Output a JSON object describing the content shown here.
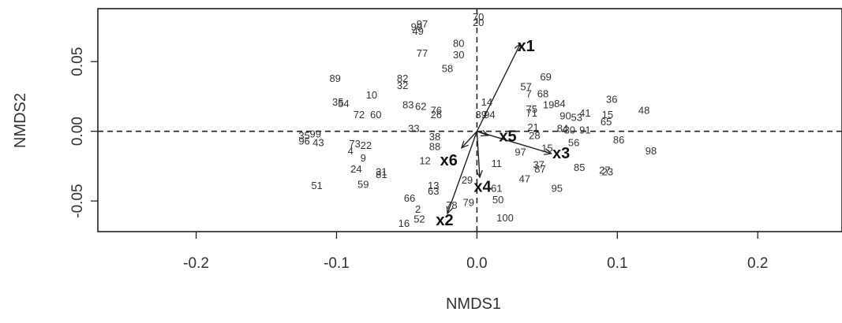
{
  "chart_data": {
    "type": "scatter",
    "xlabel": "NMDS1",
    "ylabel": "NMDS2",
    "xlim": [
      -0.27,
      0.26
    ],
    "ylim": [
      -0.072,
      0.088
    ],
    "xticks": [
      -0.2,
      -0.1,
      0.0,
      0.1,
      0.2
    ],
    "xtick_labels": [
      "-0.2",
      "-0.1",
      "0.0",
      "0.1",
      "0.2"
    ],
    "yticks": [
      -0.05,
      0.0,
      0.05
    ],
    "ytick_labels": [
      "-0.05",
      "0.00",
      "0.05"
    ],
    "reference_lines": {
      "x": 0,
      "y": 0,
      "style": "dashed"
    },
    "grid": false,
    "points": [
      {
        "label": "70",
        "x": 0.001,
        "y": 0.082
      },
      {
        "label": "20",
        "x": 0.001,
        "y": 0.078
      },
      {
        "label": "97",
        "x": -0.039,
        "y": 0.077
      },
      {
        "label": "90",
        "x": -0.043,
        "y": 0.075
      },
      {
        "label": "49",
        "x": -0.042,
        "y": 0.072
      },
      {
        "label": "80",
        "x": -0.013,
        "y": 0.063
      },
      {
        "label": "30",
        "x": -0.013,
        "y": 0.055
      },
      {
        "label": "77",
        "x": -0.039,
        "y": 0.056
      },
      {
        "label": "58",
        "x": -0.021,
        "y": 0.045
      },
      {
        "label": "89",
        "x": -0.101,
        "y": 0.038
      },
      {
        "label": "82",
        "x": -0.053,
        "y": 0.038
      },
      {
        "label": "32",
        "x": -0.053,
        "y": 0.033
      },
      {
        "label": "69",
        "x": 0.049,
        "y": 0.039
      },
      {
        "label": "57",
        "x": 0.035,
        "y": 0.032
      },
      {
        "label": "10",
        "x": -0.075,
        "y": 0.026
      },
      {
        "label": "68",
        "x": 0.047,
        "y": 0.027
      },
      {
        "label": "7",
        "x": 0.037,
        "y": 0.027
      },
      {
        "label": "36",
        "x": 0.096,
        "y": 0.023
      },
      {
        "label": "35",
        "x": -0.099,
        "y": 0.021
      },
      {
        "label": "54",
        "x": -0.095,
        "y": 0.02
      },
      {
        "label": "84",
        "x": 0.059,
        "y": 0.02
      },
      {
        "label": "19",
        "x": 0.051,
        "y": 0.019
      },
      {
        "label": "14",
        "x": 0.007,
        "y": 0.021
      },
      {
        "label": "83",
        "x": -0.049,
        "y": 0.019
      },
      {
        "label": "62",
        "x": -0.04,
        "y": 0.018
      },
      {
        "label": "48",
        "x": 0.119,
        "y": 0.015
      },
      {
        "label": "72",
        "x": -0.084,
        "y": 0.012
      },
      {
        "label": "60",
        "x": -0.072,
        "y": 0.012
      },
      {
        "label": "76",
        "x": -0.029,
        "y": 0.015
      },
      {
        "label": "26",
        "x": -0.029,
        "y": 0.012
      },
      {
        "label": "75",
        "x": 0.039,
        "y": 0.016
      },
      {
        "label": "71",
        "x": 0.039,
        "y": 0.013
      },
      {
        "label": "41",
        "x": 0.077,
        "y": 0.013
      },
      {
        "label": "15",
        "x": 0.093,
        "y": 0.012
      },
      {
        "label": "90",
        "x": 0.063,
        "y": 0.011
      },
      {
        "label": "53",
        "x": 0.071,
        "y": 0.01
      },
      {
        "label": "65",
        "x": 0.092,
        "y": 0.007
      },
      {
        "label": "39",
        "x": 0.003,
        "y": 0.012
      },
      {
        "label": "94",
        "x": 0.009,
        "y": 0.012
      },
      {
        "label": "33",
        "x": -0.045,
        "y": 0.002
      },
      {
        "label": "21",
        "x": 0.04,
        "y": 0.003
      },
      {
        "label": "84",
        "x": 0.061,
        "y": 0.002
      },
      {
        "label": "30",
        "x": 0.066,
        "y": 0.001
      },
      {
        "label": "91",
        "x": 0.077,
        "y": 0.001
      },
      {
        "label": "28",
        "x": 0.041,
        "y": -0.003
      },
      {
        "label": "56",
        "x": 0.069,
        "y": -0.008
      },
      {
        "label": "86",
        "x": 0.101,
        "y": -0.006
      },
      {
        "label": "35",
        "x": -0.123,
        "y": -0.003
      },
      {
        "label": "99",
        "x": -0.115,
        "y": -0.002
      },
      {
        "label": "96",
        "x": -0.123,
        "y": -0.007
      },
      {
        "label": "43",
        "x": -0.113,
        "y": -0.008
      },
      {
        "label": "38",
        "x": -0.03,
        "y": -0.004
      },
      {
        "label": "88",
        "x": -0.03,
        "y": -0.011
      },
      {
        "label": "73",
        "x": -0.087,
        "y": -0.009
      },
      {
        "label": "22",
        "x": -0.079,
        "y": -0.01
      },
      {
        "label": "4",
        "x": -0.09,
        "y": -0.014
      },
      {
        "label": "97",
        "x": 0.031,
        "y": -0.015
      },
      {
        "label": "15",
        "x": 0.05,
        "y": -0.012
      },
      {
        "label": "98",
        "x": 0.124,
        "y": -0.014
      },
      {
        "label": "9",
        "x": -0.081,
        "y": -0.019
      },
      {
        "label": "12",
        "x": -0.037,
        "y": -0.021
      },
      {
        "label": "11",
        "x": 0.014,
        "y": -0.023
      },
      {
        "label": "37",
        "x": 0.044,
        "y": -0.024
      },
      {
        "label": "87",
        "x": 0.045,
        "y": -0.027
      },
      {
        "label": "24",
        "x": -0.086,
        "y": -0.027
      },
      {
        "label": "31",
        "x": -0.068,
        "y": -0.029
      },
      {
        "label": "81",
        "x": -0.068,
        "y": -0.031
      },
      {
        "label": "85",
        "x": 0.073,
        "y": -0.026
      },
      {
        "label": "27",
        "x": 0.091,
        "y": -0.028
      },
      {
        "label": "23",
        "x": 0.093,
        "y": -0.029
      },
      {
        "label": "29",
        "x": -0.007,
        "y": -0.035
      },
      {
        "label": "47",
        "x": 0.034,
        "y": -0.034
      },
      {
        "label": "51",
        "x": -0.114,
        "y": -0.039
      },
      {
        "label": "59",
        "x": -0.081,
        "y": -0.038
      },
      {
        "label": "13",
        "x": -0.031,
        "y": -0.039
      },
      {
        "label": "63",
        "x": -0.031,
        "y": -0.043
      },
      {
        "label": "61",
        "x": 0.014,
        "y": -0.041
      },
      {
        "label": "95",
        "x": 0.057,
        "y": -0.041
      },
      {
        "label": "66",
        "x": -0.048,
        "y": -0.048
      },
      {
        "label": "50",
        "x": 0.015,
        "y": -0.049
      },
      {
        "label": "79",
        "x": -0.006,
        "y": -0.051
      },
      {
        "label": "78",
        "x": -0.018,
        "y": -0.053
      },
      {
        "label": "2",
        "x": -0.042,
        "y": -0.056
      },
      {
        "label": "52",
        "x": -0.041,
        "y": -0.063
      },
      {
        "label": "16",
        "x": -0.052,
        "y": -0.066
      },
      {
        "label": "100",
        "x": 0.02,
        "y": -0.062
      }
    ],
    "vectors": [
      {
        "label": "x1",
        "x_end": 0.031,
        "y_end": 0.063,
        "label_x": 0.035,
        "label_y": 0.061
      },
      {
        "label": "x2",
        "x_end": -0.021,
        "y_end": -0.059,
        "label_x": -0.023,
        "label_y": -0.064
      },
      {
        "label": "x3",
        "x_end": 0.053,
        "y_end": -0.016,
        "label_x": 0.06,
        "label_y": -0.016
      },
      {
        "label": "x4",
        "x_end": 0.002,
        "y_end": -0.033,
        "label_x": 0.004,
        "label_y": -0.04
      },
      {
        "label": "x5",
        "x_end": 0.008,
        "y_end": -0.003,
        "label_x": 0.022,
        "label_y": -0.004
      },
      {
        "label": "x6",
        "x_end": -0.011,
        "y_end": -0.012,
        "label_x": -0.02,
        "label_y": -0.021
      }
    ]
  }
}
